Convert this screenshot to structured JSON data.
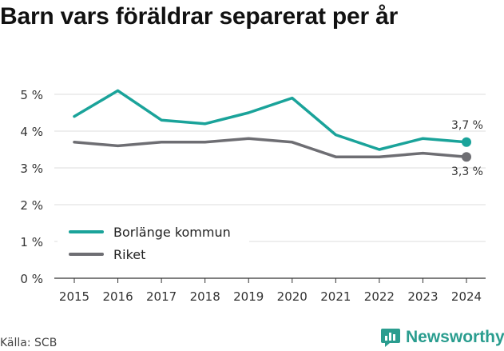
{
  "title": "Barn vars föräldrar separerat per år",
  "source": "Källa: SCB",
  "brand": {
    "name": "Newsworthy",
    "icon": "newsworthy-logo-icon"
  },
  "colors": {
    "teal": "#1aa39a",
    "gray": "#6e6e73",
    "grid": "#dcdcdc",
    "axis": "#333333"
  },
  "chart_data": {
    "type": "line",
    "x": [
      "2015",
      "2016",
      "2017",
      "2018",
      "2019",
      "2020",
      "2021",
      "2022",
      "2023",
      "2024"
    ],
    "series": [
      {
        "name": "Borlänge kommun",
        "values": [
          4.4,
          5.1,
          4.3,
          4.2,
          4.5,
          4.9,
          3.9,
          3.5,
          3.8,
          3.7
        ],
        "color": "#1aa39a",
        "end_label": "3,7 %"
      },
      {
        "name": "Riket",
        "values": [
          3.7,
          3.6,
          3.7,
          3.7,
          3.8,
          3.7,
          3.3,
          3.3,
          3.4,
          3.3
        ],
        "color": "#6e6e73",
        "end_label": "3,3 %"
      }
    ],
    "y_ticks": [
      0,
      1,
      2,
      3,
      4,
      5
    ],
    "y_tick_labels": [
      "0 %",
      "1 %",
      "2 %",
      "3 %",
      "4 %",
      "5 %"
    ],
    "ylim": [
      0,
      5
    ],
    "grid": true,
    "legend_position": "bottom-left",
    "xlabel": "",
    "ylabel": ""
  }
}
